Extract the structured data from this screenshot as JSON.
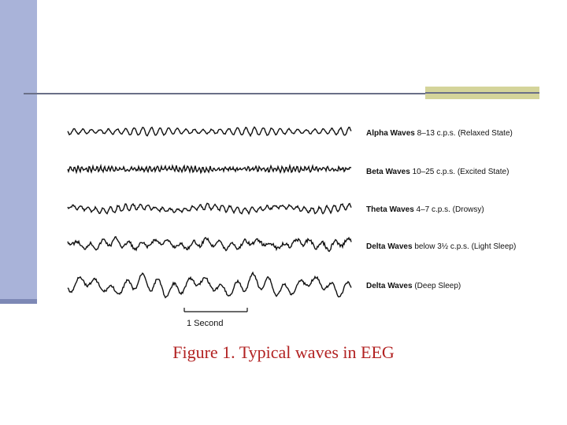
{
  "waves": [
    {
      "name": "Alpha Waves",
      "detail": "8–13 c.p.s. (Relaxed State)"
    },
    {
      "name": "Beta Waves",
      "detail": "10–25 c.p.s. (Excited State)"
    },
    {
      "name": "Theta Waves",
      "detail": "4–7 c.p.s. (Drowsy)"
    },
    {
      "name": "Delta Waves",
      "detail": "below 3½ c.p.s. (Light Sleep)"
    },
    {
      "name": "Delta Waves",
      "detail": "(Deep Sleep)"
    }
  ],
  "scale_label": "1 Second",
  "caption": "Figure 1. Typical waves in EEG",
  "colors": {
    "sidebar": "#a9b3d9",
    "accent": "#d4d49a",
    "caption": "#b22222",
    "trace": "#111111"
  }
}
